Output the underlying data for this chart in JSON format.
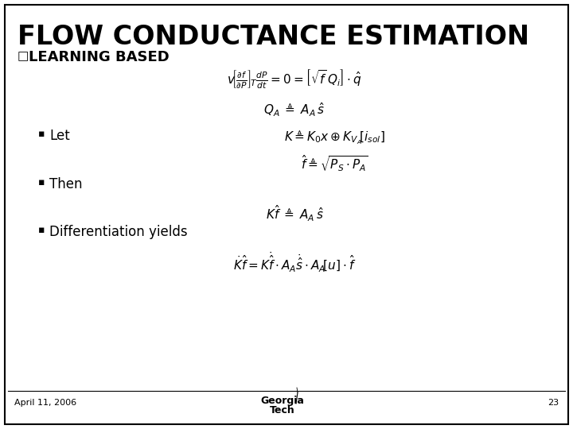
{
  "title": "FLOW CONDUCTANCE ESTIMATION",
  "subtitle": "LEARNING BASED",
  "bg_color": "#ffffff",
  "border_color": "#000000",
  "title_color": "#000000",
  "text_color": "#000000",
  "title_fontsize": 24,
  "subtitle_fontsize": 13,
  "body_fontsize": 12,
  "math_fontsize": 11,
  "small_math_fontsize": 10,
  "footer_date": "April 11, 2006",
  "footer_page": "23",
  "footer_logo_1": "Georgia",
  "footer_logo_2": "Tech",
  "eq1_parts": [
    "$v\\left[\\frac{\\partial f}{\\partial P}\\right]_T$",
    "$\\frac{dP}{dt}$",
    "$= 0 = $",
    "$\\left[\\sqrt{f}\\,Q_i\\right]$",
    "$\\cdot\\hat{q}$"
  ],
  "eq2": "$Q_A \\;\\triangleq\\; A_A\\,\\hat{s}$",
  "bullet_let": "Let",
  "eq3": "$K \\triangleq K_0 x \\oplus K_{V_A}\\left[i_{sol}\\right]$",
  "eq4": "$\\hat{f} \\triangleq \\sqrt{P_S \\cdot P_A}$",
  "bullet_then": "Then",
  "eq5": "$K\\hat{f} \\;\\triangleq\\; A_A\\,\\hat{s}$",
  "bullet_diff": "Differentiation yields",
  "eq6": "$\\dot{K}\\hat{f} = K\\dot{\\hat{f}} \\cdot A_A\\dot{\\hat{s}} \\cdot A_A\\left[u\\right]\\cdot\\hat{f}$",
  "fig_width": 7.2,
  "fig_height": 5.4,
  "dpi": 100
}
